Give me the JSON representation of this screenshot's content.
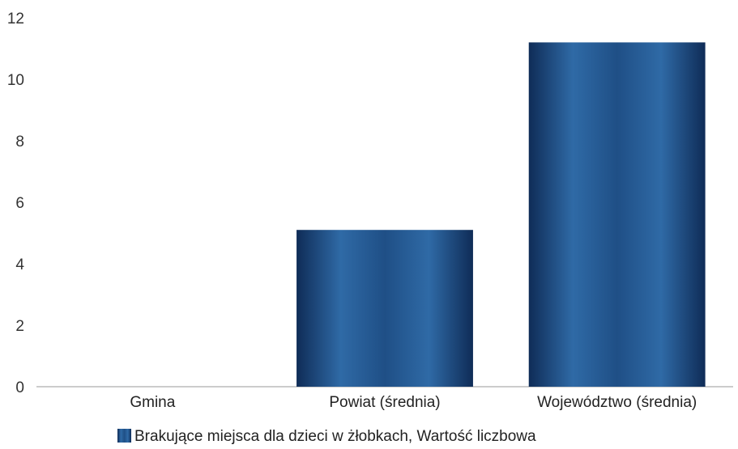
{
  "chart_data": {
    "type": "bar",
    "categories": [
      "Gmina",
      "Powiat (średnia)",
      "Województwo (średnia)"
    ],
    "series": [
      {
        "name": "Brakujące miejsca dla dzieci w żłobkach, Wartość liczbowa",
        "values": [
          0,
          5.1,
          11.2
        ]
      }
    ],
    "yticks": [
      "0",
      "2",
      "4",
      "6",
      "8",
      "10",
      "12"
    ],
    "ylim": [
      0,
      12
    ],
    "grid": false,
    "legend": "bottom",
    "colors": {
      "bar_dark": "#0f2c57",
      "bar_mid": "#1f4f86",
      "bar_light": "#2f6aa6",
      "axis": "#999999"
    }
  }
}
